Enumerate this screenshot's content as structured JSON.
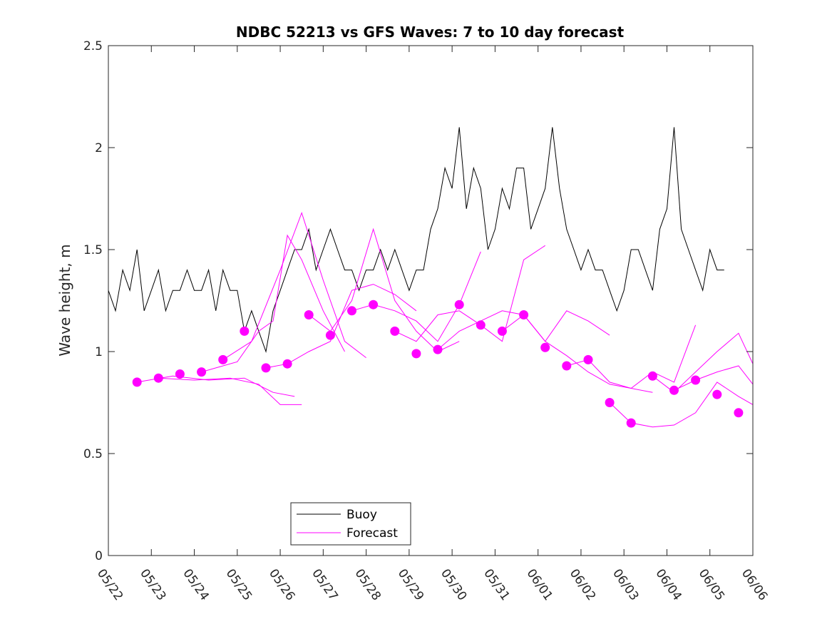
{
  "chart_data": {
    "type": "line",
    "title": "NDBC 52213 vs GFS Waves: 7 to 10 day forecast",
    "xlabel": "",
    "ylabel": "Wave height, m",
    "x_unit": "date (MM/DD)",
    "xlim": [
      "05/22",
      "06/06"
    ],
    "ylim": [
      0,
      2.5
    ],
    "xticks": [
      "05/22",
      "05/23",
      "05/24",
      "05/25",
      "05/26",
      "05/27",
      "05/28",
      "05/29",
      "05/30",
      "05/31",
      "06/01",
      "06/02",
      "06/03",
      "06/04",
      "06/05",
      "06/06"
    ],
    "yticks": [
      0,
      0.5,
      1,
      1.5,
      2,
      2.5
    ],
    "grid": false,
    "legend": {
      "placement": "bottom-center",
      "entries": [
        {
          "label": "Buoy",
          "color": "#000000"
        },
        {
          "label": "Forecast",
          "color": "#ff00ff"
        }
      ]
    },
    "series": [
      {
        "name": "Buoy",
        "color": "#000000",
        "style": "line",
        "x": [
          "05/22 00:00",
          "05/22 04:00",
          "05/22 08:00",
          "05/22 12:00",
          "05/22 16:00",
          "05/22 20:00",
          "05/23 00:00",
          "05/23 04:00",
          "05/23 08:00",
          "05/23 12:00",
          "05/23 16:00",
          "05/23 20:00",
          "05/24 00:00",
          "05/24 04:00",
          "05/24 08:00",
          "05/24 12:00",
          "05/24 16:00",
          "05/24 20:00",
          "05/25 00:00",
          "05/25 04:00",
          "05/25 08:00",
          "05/25 12:00",
          "05/25 16:00",
          "05/25 20:00",
          "05/26 00:00",
          "05/26 04:00",
          "05/26 08:00",
          "05/26 12:00",
          "05/26 16:00",
          "05/26 20:00",
          "05/27 00:00",
          "05/27 04:00",
          "05/27 08:00",
          "05/27 12:00",
          "05/27 16:00",
          "05/27 20:00",
          "05/28 00:00",
          "05/28 04:00",
          "05/28 08:00",
          "05/28 12:00",
          "05/28 16:00",
          "05/28 20:00",
          "05/29 00:00",
          "05/29 04:00",
          "05/29 08:00",
          "05/29 12:00",
          "05/29 16:00",
          "05/29 20:00",
          "05/30 00:00",
          "05/30 04:00",
          "05/30 08:00",
          "05/30 12:00",
          "05/30 16:00",
          "05/30 20:00",
          "05/31 00:00",
          "05/31 04:00",
          "05/31 08:00",
          "05/31 12:00",
          "05/31 16:00",
          "05/31 20:00",
          "06/01 00:00",
          "06/01 04:00",
          "06/01 08:00",
          "06/01 12:00",
          "06/01 16:00",
          "06/01 20:00",
          "06/02 00:00",
          "06/02 04:00",
          "06/02 08:00",
          "06/02 12:00",
          "06/02 16:00",
          "06/02 20:00",
          "06/03 00:00",
          "06/03 04:00",
          "06/03 08:00",
          "06/03 12:00",
          "06/03 16:00",
          "06/03 20:00",
          "06/04 00:00",
          "06/04 04:00",
          "06/04 08:00",
          "06/04 12:00",
          "06/04 16:00",
          "06/04 20:00",
          "06/05 00:00",
          "06/05 04:00",
          "06/05 08:00"
        ],
        "values": [
          1.3,
          1.2,
          1.4,
          1.3,
          1.5,
          1.2,
          1.3,
          1.4,
          1.2,
          1.3,
          1.3,
          1.4,
          1.3,
          1.3,
          1.4,
          1.2,
          1.4,
          1.3,
          1.3,
          1.1,
          1.2,
          1.1,
          1.0,
          1.2,
          1.3,
          1.4,
          1.5,
          1.5,
          1.6,
          1.4,
          1.5,
          1.6,
          1.5,
          1.4,
          1.4,
          1.3,
          1.4,
          1.4,
          1.5,
          1.4,
          1.5,
          1.4,
          1.3,
          1.4,
          1.4,
          1.6,
          1.7,
          1.9,
          1.8,
          2.1,
          1.7,
          1.9,
          1.8,
          1.5,
          1.6,
          1.8,
          1.7,
          1.9,
          1.9,
          1.6,
          1.7,
          1.8,
          2.1,
          1.8,
          1.6,
          1.5,
          1.4,
          1.5,
          1.4,
          1.4,
          1.3,
          1.2,
          1.3,
          1.5,
          1.5,
          1.4,
          1.3,
          1.6,
          1.7,
          2.1,
          1.6,
          1.5,
          1.4,
          1.3,
          1.5,
          1.4,
          1.4
        ]
      },
      {
        "name": "Forecast",
        "color": "#ff00ff",
        "style": "markers",
        "x": [
          "05/22 16:00",
          "05/23 04:00",
          "05/23 16:00",
          "05/24 04:00",
          "05/24 16:00",
          "05/25 04:00",
          "05/25 16:00",
          "05/26 04:00",
          "05/26 16:00",
          "05/27 04:00",
          "05/27 16:00",
          "05/28 04:00",
          "05/28 16:00",
          "05/29 04:00",
          "05/29 16:00",
          "05/30 04:00",
          "05/30 16:00",
          "05/31 04:00",
          "05/31 16:00",
          "06/01 04:00",
          "06/01 16:00",
          "06/02 04:00",
          "06/02 16:00",
          "06/03 04:00",
          "06/03 16:00",
          "06/04 04:00",
          "06/04 16:00",
          "06/05 04:00",
          "06/05 16:00"
        ],
        "values": [
          0.85,
          0.87,
          0.89,
          0.9,
          0.96,
          1.1,
          0.92,
          0.94,
          1.18,
          1.08,
          1.2,
          1.23,
          1.1,
          0.99,
          1.01,
          1.23,
          1.13,
          1.1,
          1.18,
          1.02,
          0.93,
          0.96,
          0.75,
          0.65,
          0.88,
          0.81,
          0.86,
          0.79,
          0.7
        ]
      },
      {
        "name": "",
        "color": "#ff00ff",
        "style": "line",
        "x": [
          "05/22 16:00",
          "05/23 12:00",
          "05/24 08:00",
          "05/25 04:00",
          "05/25 20:00",
          "05/26 08:00"
        ],
        "values": [
          0.85,
          0.88,
          0.86,
          0.87,
          0.8,
          0.78
        ]
      },
      {
        "name": "",
        "color": "#ff00ff",
        "style": "line",
        "x": [
          "05/23 04:00",
          "05/24 00:00",
          "05/24 20:00",
          "05/25 12:00",
          "05/26 00:00",
          "05/26 12:00"
        ],
        "values": [
          0.87,
          0.86,
          0.87,
          0.84,
          0.74,
          0.74
        ]
      },
      {
        "name": "",
        "color": "#ff00ff",
        "style": "line",
        "x": [
          "05/24 04:00",
          "05/25 00:00",
          "05/25 12:00",
          "05/25 20:00",
          "05/26 04:00",
          "05/26 12:00",
          "05/27 00:00",
          "05/27 12:00"
        ],
        "values": [
          0.9,
          0.95,
          1.1,
          1.15,
          1.57,
          1.45,
          1.2,
          1.0
        ]
      },
      {
        "name": "",
        "color": "#ff00ff",
        "style": "line",
        "x": [
          "05/24 16:00",
          "05/25 08:00",
          "05/26 00:00",
          "05/26 12:00",
          "05/27 00:00",
          "05/27 12:00",
          "05/28 00:00"
        ],
        "values": [
          0.96,
          1.05,
          1.4,
          1.68,
          1.35,
          1.05,
          0.97
        ]
      },
      {
        "name": "",
        "color": "#ff00ff",
        "style": "line",
        "x": [
          "05/25 16:00",
          "05/26 04:00",
          "05/26 16:00",
          "05/27 04:00",
          "05/27 16:00",
          "05/28 04:00",
          "05/28 16:00",
          "05/29 04:00"
        ],
        "values": [
          0.92,
          0.94,
          1.0,
          1.05,
          1.3,
          1.33,
          1.28,
          1.2
        ]
      },
      {
        "name": "",
        "color": "#ff00ff",
        "style": "line",
        "x": [
          "05/26 16:00",
          "05/27 04:00",
          "05/27 16:00",
          "05/28 04:00",
          "05/28 16:00",
          "05/29 04:00",
          "05/29 16:00",
          "05/30 04:00"
        ],
        "values": [
          1.18,
          1.1,
          1.25,
          1.6,
          1.25,
          1.1,
          1.0,
          1.05
        ]
      },
      {
        "name": "",
        "color": "#ff00ff",
        "style": "line",
        "x": [
          "05/27 16:00",
          "05/28 04:00",
          "05/28 16:00",
          "05/29 04:00",
          "05/29 16:00",
          "05/30 04:00",
          "05/30 16:00"
        ],
        "values": [
          1.2,
          1.23,
          1.2,
          1.15,
          1.05,
          1.23,
          1.49
        ]
      },
      {
        "name": "",
        "color": "#ff00ff",
        "style": "line",
        "x": [
          "05/28 16:00",
          "05/29 04:00",
          "05/29 16:00",
          "05/30 04:00",
          "05/30 16:00",
          "05/31 04:00",
          "05/31 16:00",
          "06/01 04:00"
        ],
        "values": [
          1.1,
          1.05,
          1.18,
          1.2,
          1.13,
          1.05,
          1.45,
          1.52
        ]
      },
      {
        "name": "",
        "color": "#ff00ff",
        "style": "line",
        "x": [
          "05/29 16:00",
          "05/30 04:00",
          "05/30 16:00",
          "05/31 04:00",
          "05/31 16:00",
          "06/01 04:00",
          "06/01 16:00",
          "06/02 04:00",
          "06/02 16:00"
        ],
        "values": [
          1.01,
          1.1,
          1.15,
          1.2,
          1.18,
          1.05,
          1.2,
          1.15,
          1.08
        ]
      },
      {
        "name": "",
        "color": "#ff00ff",
        "style": "line",
        "x": [
          "05/31 04:00",
          "05/31 16:00",
          "06/01 04:00",
          "06/01 16:00",
          "06/02 04:00",
          "06/02 16:00",
          "06/03 04:00",
          "06/03 16:00"
        ],
        "values": [
          1.1,
          1.18,
          1.05,
          0.98,
          0.9,
          0.84,
          0.82,
          0.8
        ]
      },
      {
        "name": "",
        "color": "#ff00ff",
        "style": "line",
        "x": [
          "06/01 16:00",
          "06/02 04:00",
          "06/02 16:00",
          "06/03 04:00",
          "06/03 16:00",
          "06/04 04:00",
          "06/04 16:00"
        ],
        "values": [
          0.93,
          0.96,
          0.85,
          0.82,
          0.9,
          0.85,
          1.13
        ]
      },
      {
        "name": "",
        "color": "#ff00ff",
        "style": "line",
        "x": [
          "06/02 16:00",
          "06/03 04:00",
          "06/03 16:00",
          "06/04 04:00",
          "06/04 16:00",
          "06/05 04:00",
          "06/05 16:00",
          "06/06 00:00"
        ],
        "values": [
          0.75,
          0.65,
          0.63,
          0.64,
          0.7,
          0.85,
          0.78,
          0.74
        ]
      },
      {
        "name": "",
        "color": "#ff00ff",
        "style": "line",
        "x": [
          "06/03 16:00",
          "06/04 04:00",
          "06/04 16:00",
          "06/05 04:00",
          "06/05 16:00",
          "06/06 00:00"
        ],
        "values": [
          0.88,
          0.8,
          0.9,
          1.0,
          1.09,
          0.94
        ]
      },
      {
        "name": "",
        "color": "#ff00ff",
        "style": "line",
        "x": [
          "06/04 04:00",
          "06/04 16:00",
          "06/05 04:00",
          "06/05 16:00",
          "06/06 00:00"
        ],
        "values": [
          0.81,
          0.86,
          0.9,
          0.93,
          0.84
        ]
      }
    ]
  }
}
